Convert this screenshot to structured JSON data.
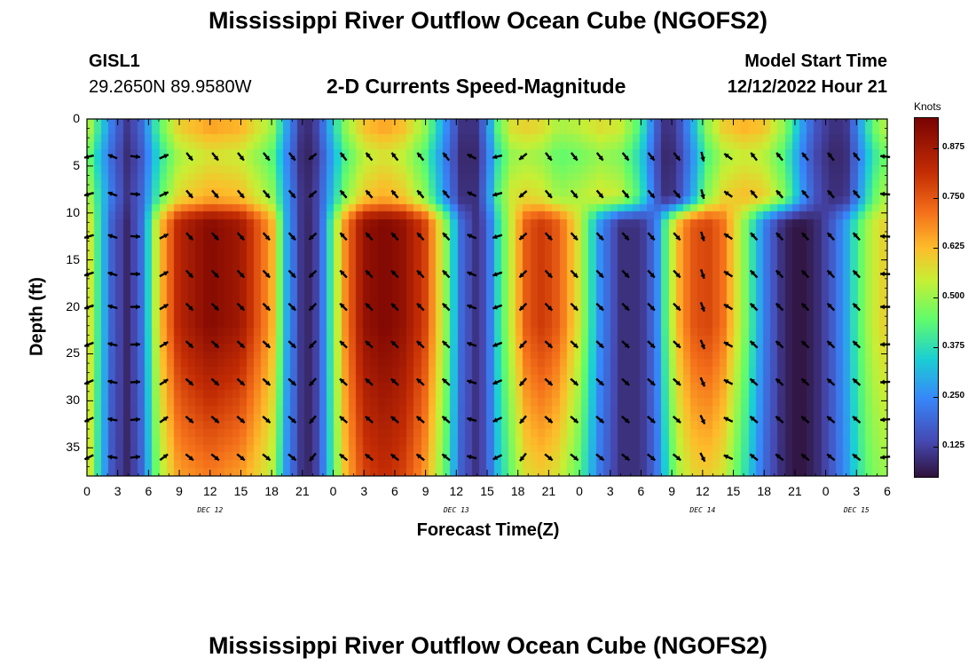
{
  "header": {
    "title_top": "Mississippi River Outflow Ocean Cube (NGOFS2)",
    "title_bottom": "Mississippi River Outflow Ocean Cube (NGOFS2)",
    "station_id": "GISL1",
    "station_coords": "29.2650N  89.9580W",
    "subtitle": "2-D Currents Speed-Magnitude",
    "model_start_label": "Model Start Time",
    "model_start_value": "12/12/2022 Hour 21"
  },
  "colors": {
    "arrow": "#000000",
    "background": "#ffffff"
  },
  "chart_data": {
    "type": "heatmap",
    "title": "2-D Currents Speed-Magnitude",
    "xlabel": "Forecast Time(Z)",
    "ylabel": "Depth (ft)",
    "xlim": [
      0,
      78
    ],
    "ylim": [
      0,
      38
    ],
    "y_inverted": true,
    "yticks": [
      0,
      5,
      10,
      15,
      20,
      25,
      30,
      35
    ],
    "xtick_values": [
      0,
      3,
      6,
      9,
      12,
      15,
      18,
      21,
      24,
      27,
      30,
      33,
      36,
      39,
      42,
      45,
      48,
      51,
      54,
      57,
      60,
      63,
      66,
      69,
      72,
      75,
      78
    ],
    "xtick_labels": [
      "0",
      "3",
      "6",
      "9",
      "12",
      "15",
      "18",
      "21",
      "0",
      "3",
      "6",
      "9",
      "12",
      "15",
      "18",
      "21",
      "0",
      "3",
      "6",
      "9",
      "12",
      "15",
      "18",
      "21",
      "0",
      "3",
      "6"
    ],
    "day_labels": [
      {
        "text": "DEC 12",
        "hour": 12
      },
      {
        "text": "DEC 13",
        "hour": 36
      },
      {
        "text": "DEC 14",
        "hour": 60
      },
      {
        "text": "DEC 15",
        "hour": 75
      }
    ],
    "colorbar": {
      "unit": "Knots",
      "min": 0.05,
      "max": 0.95,
      "ticks": [
        0.125,
        0.25,
        0.375,
        0.5,
        0.625,
        0.75,
        0.875
      ],
      "tick_labels": [
        "0.125",
        "0.250",
        "0.375",
        "0.500",
        "0.625",
        "0.750",
        "0.875"
      ]
    },
    "time_profile": {
      "hours": [
        0,
        1,
        2.5,
        4,
        5.5,
        7,
        9,
        12,
        15,
        18,
        19.5,
        21,
        22,
        23,
        25,
        27,
        29,
        31,
        33,
        35,
        36.5,
        38,
        39,
        40,
        41.5,
        43,
        44.5,
        46,
        48,
        50,
        52,
        54,
        55.5,
        56.5,
        57.5,
        59,
        60.5,
        62,
        64,
        66,
        68,
        69.5,
        71,
        72.5,
        74,
        75,
        76,
        77,
        78
      ],
      "surface": [
        0.55,
        0.4,
        0.22,
        0.1,
        0.2,
        0.42,
        0.58,
        0.64,
        0.62,
        0.5,
        0.28,
        0.1,
        0.09,
        0.2,
        0.46,
        0.6,
        0.64,
        0.6,
        0.48,
        0.26,
        0.1,
        0.1,
        0.22,
        0.42,
        0.56,
        0.58,
        0.56,
        0.5,
        0.52,
        0.56,
        0.54,
        0.4,
        0.18,
        0.09,
        0.12,
        0.28,
        0.48,
        0.58,
        0.62,
        0.6,
        0.48,
        0.3,
        0.16,
        0.1,
        0.1,
        0.22,
        0.36,
        0.46,
        0.52
      ],
      "mid": [
        0.62,
        0.42,
        0.18,
        0.08,
        0.22,
        0.6,
        0.84,
        0.93,
        0.88,
        0.66,
        0.3,
        0.1,
        0.08,
        0.22,
        0.66,
        0.9,
        0.94,
        0.9,
        0.78,
        0.5,
        0.2,
        0.1,
        0.16,
        0.36,
        0.56,
        0.76,
        0.8,
        0.74,
        0.56,
        0.26,
        0.1,
        0.1,
        0.22,
        0.44,
        0.62,
        0.75,
        0.78,
        0.72,
        0.5,
        0.24,
        0.08,
        0.05,
        0.08,
        0.16,
        0.28,
        0.4,
        0.5,
        0.56,
        0.6
      ],
      "bottom": [
        0.62,
        0.4,
        0.16,
        0.08,
        0.2,
        0.5,
        0.66,
        0.7,
        0.66,
        0.54,
        0.26,
        0.1,
        0.08,
        0.22,
        0.6,
        0.78,
        0.82,
        0.78,
        0.66,
        0.44,
        0.18,
        0.1,
        0.16,
        0.32,
        0.46,
        0.58,
        0.6,
        0.56,
        0.44,
        0.22,
        0.1,
        0.1,
        0.2,
        0.36,
        0.5,
        0.58,
        0.6,
        0.56,
        0.4,
        0.2,
        0.08,
        0.05,
        0.08,
        0.16,
        0.26,
        0.36,
        0.44,
        0.48,
        0.5
      ]
    },
    "vectors": {
      "times": [
        0.2,
        2.5,
        4.7,
        7.5,
        10,
        12.5,
        15,
        17.5,
        20,
        22,
        25,
        27.5,
        30,
        32.5,
        35,
        37.5,
        40,
        42.5,
        45,
        47.5,
        50,
        52.5,
        55,
        57.5,
        60,
        62.5,
        65,
        67.5,
        70,
        72.5,
        75,
        77.8
      ],
      "depths": [
        4,
        8,
        12.5,
        16.5,
        20,
        24,
        28,
        32,
        36
      ],
      "angle_deg_by_time": [
        200,
        165,
        0,
        30,
        315,
        315,
        315,
        315,
        315,
        225,
        135,
        135,
        135,
        135,
        135,
        160,
        200,
        225,
        315,
        315,
        315,
        315,
        315,
        315,
        290,
        150,
        135,
        135,
        135,
        135,
        135,
        180
      ]
    }
  }
}
